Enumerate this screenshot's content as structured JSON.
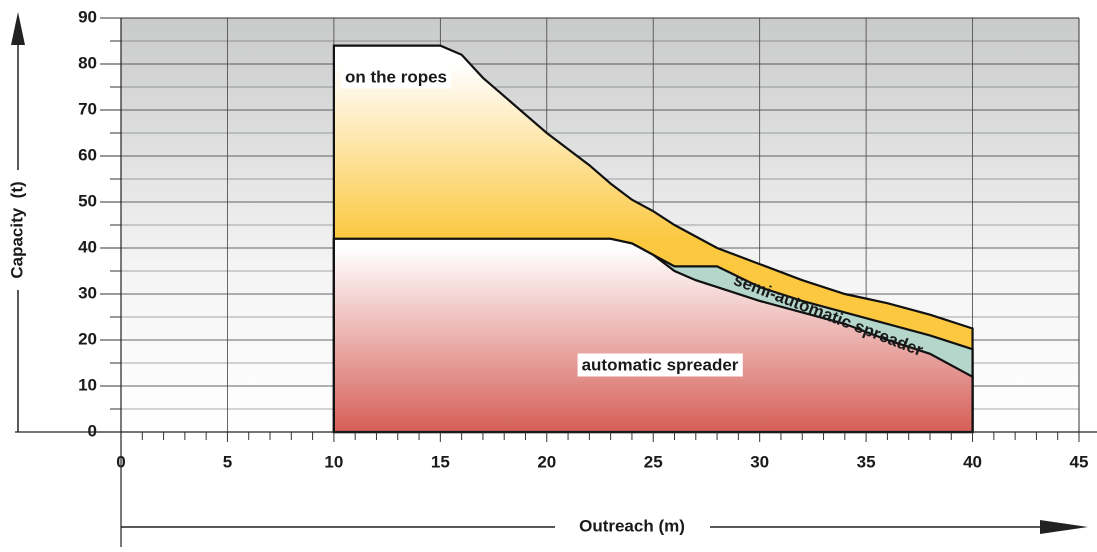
{
  "chart_data": {
    "type": "area",
    "x_label": "Outreach (m)",
    "y_label": "Capacity  (t)",
    "x": [
      10,
      12,
      14,
      15,
      16,
      17,
      18,
      20,
      22,
      23,
      24,
      25,
      26,
      27,
      28,
      30,
      32,
      34,
      36,
      38,
      40
    ],
    "series": [
      {
        "name": "on the ropes",
        "color": "#fcc840",
        "values": [
          84,
          84,
          84,
          84,
          82,
          77,
          73,
          65,
          58,
          54,
          50.5,
          48,
          45,
          42.5,
          40,
          36.5,
          33,
          30,
          28,
          25.5,
          22.5
        ]
      },
      {
        "name": "semi-automatic spreader",
        "color": "#b4d6cb",
        "values": [
          42,
          42,
          42,
          42,
          42,
          42,
          42,
          42,
          42,
          42,
          41,
          38.5,
          36,
          36,
          36,
          31.5,
          28.5,
          26,
          23.5,
          21,
          18
        ]
      },
      {
        "name": "automatic spreader",
        "color": "#d65f58",
        "values": [
          42,
          42,
          42,
          42,
          42,
          42,
          42,
          42,
          42,
          42,
          41,
          38.5,
          35,
          33,
          31.5,
          28.5,
          26,
          23.5,
          20,
          17,
          12
        ]
      }
    ],
    "xlim": [
      0,
      45
    ],
    "ylim": [
      0,
      90
    ],
    "xticks": [
      0,
      5,
      10,
      15,
      20,
      25,
      30,
      35,
      40,
      45
    ],
    "yticks": [
      0,
      10,
      20,
      30,
      40,
      50,
      60,
      70,
      80,
      90
    ],
    "grid": true
  }
}
